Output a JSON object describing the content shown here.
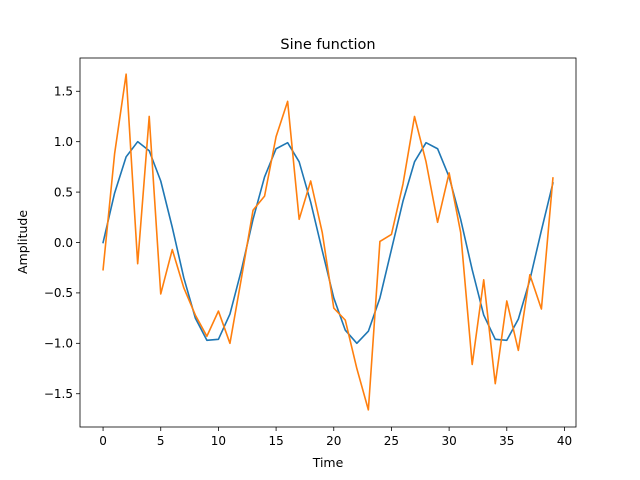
{
  "chart_data": {
    "type": "line",
    "title": "Sine function",
    "xlabel": "Time",
    "ylabel": "Amplitude",
    "xlim": [
      -2,
      41
    ],
    "ylim": [
      -1.83,
      1.83
    ],
    "xticks": [
      0,
      5,
      10,
      15,
      20,
      25,
      30,
      35,
      40
    ],
    "yticks": [
      -1.5,
      -1.0,
      -0.5,
      0.0,
      0.5,
      1.0,
      1.5
    ],
    "ytick_labels": [
      "−1.5",
      "−1.0",
      "−0.5",
      "0.0",
      "0.5",
      "1.0",
      "1.5"
    ],
    "grid": false,
    "x": [
      0,
      1,
      2,
      3,
      4,
      5,
      6,
      7,
      8,
      9,
      10,
      11,
      12,
      13,
      14,
      15,
      16,
      17,
      18,
      19,
      20,
      21,
      22,
      23,
      24,
      25,
      26,
      27,
      28,
      29,
      30,
      31,
      32,
      33,
      34,
      35,
      36,
      37,
      38,
      39
    ],
    "series": [
      {
        "color": "#1f77b4",
        "values": [
          0.0,
          0.49,
          0.85,
          1.0,
          0.91,
          0.61,
          0.15,
          -0.35,
          -0.75,
          -0.97,
          -0.96,
          -0.71,
          -0.27,
          0.23,
          0.65,
          0.93,
          0.99,
          0.8,
          0.4,
          -0.08,
          -0.55,
          -0.87,
          -1.0,
          -0.88,
          -0.55,
          -0.07,
          0.41,
          0.8,
          0.99,
          0.93,
          0.65,
          0.23,
          -0.27,
          -0.72,
          -0.96,
          -0.97,
          -0.76,
          -0.37,
          0.12,
          0.59
        ]
      },
      {
        "color": "#ff7f0e",
        "values": [
          -0.27,
          0.88,
          1.67,
          -0.21,
          1.25,
          -0.51,
          -0.07,
          -0.45,
          -0.72,
          -0.93,
          -0.68,
          -1.0,
          -0.35,
          0.32,
          0.46,
          1.05,
          1.4,
          0.23,
          0.61,
          0.1,
          -0.65,
          -0.77,
          -1.25,
          -1.66,
          0.01,
          0.08,
          0.58,
          1.25,
          0.8,
          0.2,
          0.69,
          0.1,
          -1.21,
          -0.37,
          -1.4,
          -0.58,
          -1.07,
          -0.32,
          -0.66,
          0.64
        ]
      }
    ]
  }
}
